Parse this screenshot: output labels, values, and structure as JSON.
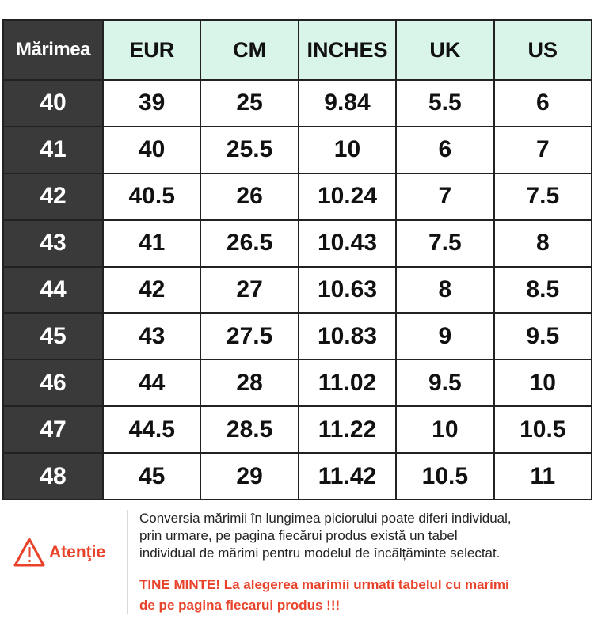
{
  "chart_data": {
    "type": "table",
    "columns": [
      "Mărimea",
      "EUR",
      "CM",
      "INCHES",
      "UK",
      "US"
    ],
    "rows": [
      [
        "40",
        "39",
        "25",
        "9.84",
        "5.5",
        "6"
      ],
      [
        "41",
        "40",
        "25.5",
        "10",
        "6",
        "7"
      ],
      [
        "42",
        "40.5",
        "26",
        "10.24",
        "7",
        "7.5"
      ],
      [
        "43",
        "41",
        "26.5",
        "10.43",
        "7.5",
        "8"
      ],
      [
        "44",
        "42",
        "27",
        "10.63",
        "8",
        "8.5"
      ],
      [
        "45",
        "43",
        "27.5",
        "10.83",
        "9",
        "9.5"
      ],
      [
        "46",
        "44",
        "28",
        "11.02",
        "9.5",
        "10"
      ],
      [
        "47",
        "44.5",
        "28.5",
        "11.22",
        "10",
        "10.5"
      ],
      [
        "48",
        "45",
        "29",
        "11.42",
        "10.5",
        "11"
      ]
    ]
  },
  "notice": {
    "label": "Atenţie",
    "icon": "warning-triangle-icon",
    "text_lines": [
      "Conversia mărimii în lungimea piciorului poate diferi individual,",
      "prin urmare, pe pagina fiecărui produs există un tabel",
      "individual de mărimi pentru modelul de încălțăminte selectat."
    ],
    "warning_lines": [
      "TINE MINTE! La alegerea marimii urmati tabelul cu marimi",
      "de pe pagina fiecarui produs !!!"
    ]
  },
  "colors": {
    "header_bg": "#d9f5ea",
    "dark_cell": "#3a3a3a",
    "accent_red": "#e8432a"
  }
}
